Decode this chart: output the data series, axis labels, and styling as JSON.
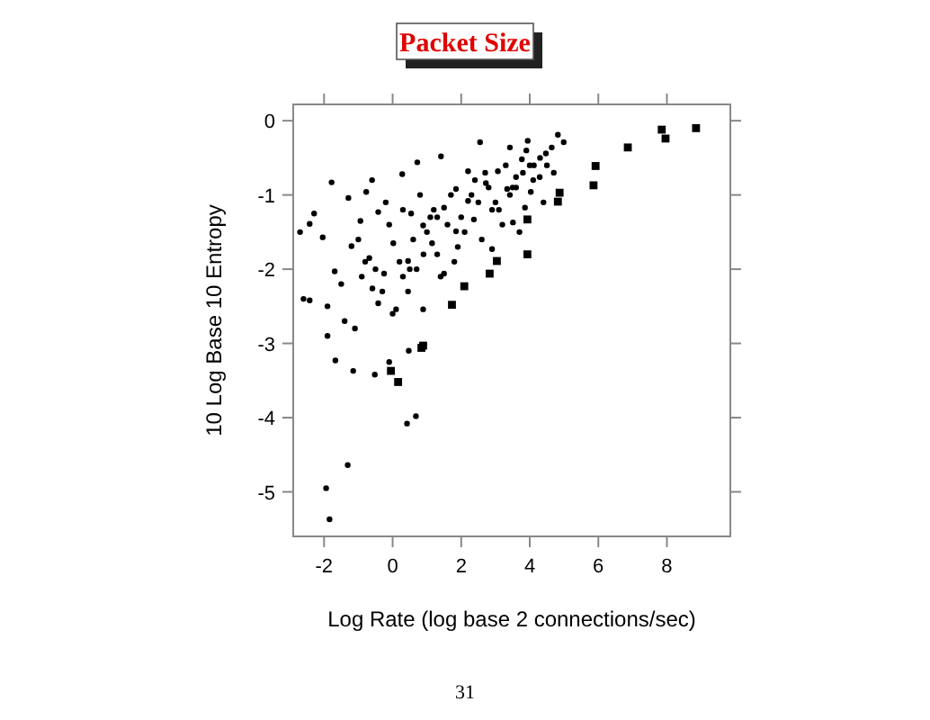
{
  "chart_data": {
    "type": "scatter",
    "title": "Packet Size",
    "xlabel": "Log Rate (log base 2 connections/sec)",
    "ylabel": "10 Log Base 10 Entropy",
    "annotations": [
      "31"
    ],
    "xlim": [
      -2.9,
      9.85
    ],
    "ylim": [
      -5.6,
      0.22
    ],
    "xticks": [
      -2,
      0,
      2,
      4,
      6,
      8
    ],
    "yticks": [
      -5,
      -4,
      -3,
      -2,
      -1,
      0
    ],
    "grid": false,
    "series": [
      {
        "color": "#000000",
        "marker": "circle",
        "x": [
          -1.94,
          -1.84,
          -1.31,
          0.42,
          0.68,
          -1.67,
          -1.15,
          -0.52,
          -0.1,
          0.47,
          -2.42,
          -2.29,
          -1.78,
          -2.04,
          -1.69,
          -1.2,
          -1.29,
          -0.77,
          -0.94,
          -0.42,
          -0.68,
          -0.25,
          0.02,
          0.28,
          0.72,
          0.8,
          1.15,
          0.89,
          1.41,
          1.5,
          1.85,
          2.2,
          2.37,
          2.55,
          2.72,
          3.07,
          3.34,
          2.9,
          1.5,
          0.45,
          -0.42,
          0.1,
          -0.59,
          -2.42,
          -1.9,
          0.89,
          0.45,
          1.85,
          2.2,
          0.54,
          3.42,
          3.94,
          4.82,
          4.99,
          4.47,
          4.12,
          3.77,
          3.6,
          4.29,
          3.42,
          4.03,
          3.51,
          3.86,
          4.64,
          1.2,
          1.7,
          2.0,
          2.5,
          2.8,
          3.1,
          3.3,
          3.6,
          3.8,
          4.1,
          4.3,
          4.5,
          1.0,
          1.3,
          1.6,
          2.1,
          2.4,
          2.6,
          3.0,
          3.2,
          0.2,
          0.5,
          0.9,
          1.4,
          1.9,
          -0.3,
          -0.1,
          0.3,
          0.6,
          1.1,
          -0.8,
          -0.5,
          -1.0,
          -1.5,
          -2.7,
          -2.6,
          -1.9,
          -1.4,
          -0.9,
          0.0,
          0.7,
          1.8,
          2.3,
          2.9,
          3.5,
          4.0,
          4.4,
          4.7,
          3.9,
          3.7,
          2.7,
          1.3,
          0.3,
          -0.2,
          -0.6,
          -1.1
        ],
        "values": [
          -4.95,
          -5.37,
          -4.64,
          -4.08,
          -3.98,
          -3.23,
          -3.37,
          -3.42,
          -3.25,
          -3.1,
          -1.39,
          -1.25,
          -0.83,
          -1.57,
          -2.03,
          -1.69,
          -1.04,
          -0.96,
          -1.35,
          -1.23,
          -1.85,
          -2.06,
          -1.65,
          -0.72,
          -0.56,
          -1.0,
          -1.65,
          -1.41,
          -0.48,
          -1.17,
          -0.92,
          -0.68,
          -1.33,
          -0.29,
          -0.84,
          -0.68,
          -0.92,
          -1.73,
          -2.06,
          -2.3,
          -2.46,
          -2.54,
          -2.26,
          -2.42,
          -2.5,
          -2.54,
          -1.89,
          -1.49,
          -1.08,
          -1.25,
          -0.36,
          -0.27,
          -0.19,
          -0.29,
          -0.44,
          -0.6,
          -0.52,
          -0.76,
          -0.76,
          -1.0,
          -0.96,
          -1.37,
          -1.17,
          -0.36,
          -1.2,
          -1.0,
          -1.3,
          -1.1,
          -0.9,
          -1.2,
          -0.6,
          -0.9,
          -0.7,
          -0.8,
          -0.5,
          -0.6,
          -1.5,
          -1.8,
          -1.4,
          -1.5,
          -0.8,
          -1.6,
          -1.1,
          -1.4,
          -1.9,
          -2.0,
          -1.8,
          -2.1,
          -1.7,
          -2.3,
          -1.4,
          -1.2,
          -1.6,
          -1.3,
          -1.9,
          -2.0,
          -1.6,
          -2.2,
          -1.5,
          -2.4,
          -2.9,
          -2.7,
          -2.1,
          -2.6,
          -2.0,
          -1.9,
          -1.0,
          -1.2,
          -0.9,
          -0.6,
          -1.1,
          -0.7,
          -0.4,
          -1.5,
          -0.7,
          -1.3,
          -2.1,
          -1.1,
          -0.8,
          -2.8
        ]
      },
      {
        "color": "#000000",
        "marker": "square",
        "x": [
          8.85,
          7.85,
          7.96,
          6.86,
          5.92,
          5.86,
          4.87,
          4.82,
          3.93,
          3.93,
          3.04,
          2.83,
          2.09,
          1.73,
          0.89,
          0.84,
          -0.05,
          0.16
        ],
        "values": [
          -0.1,
          -0.12,
          -0.24,
          -0.36,
          -0.61,
          -0.87,
          -0.97,
          -1.09,
          -1.33,
          -1.8,
          -1.89,
          -2.06,
          -2.23,
          -2.48,
          -3.03,
          -3.06,
          -3.37,
          -3.52
        ]
      }
    ]
  }
}
